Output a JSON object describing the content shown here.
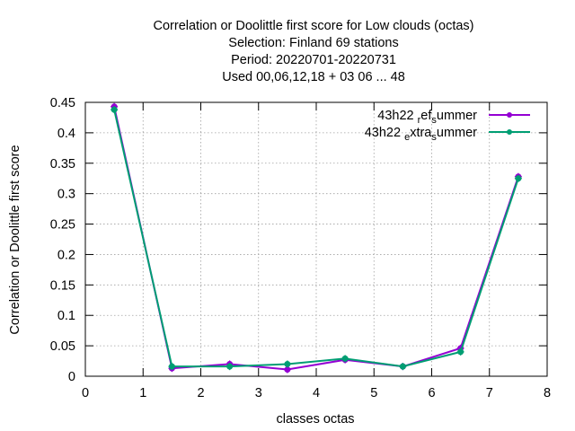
{
  "chart_data": {
    "type": "line",
    "title_lines": [
      "Correlation or Doolittle first score  for Low clouds (octas)",
      "Selection: Finland     69 stations",
      "Period: 20220701-20220731",
      "Used  00,06,12,18  + 03 06 ... 48"
    ],
    "xlabel": "classes octas",
    "ylabel": "Correlation or Doolittle first score",
    "xlim": [
      0,
      8
    ],
    "ylim": [
      0,
      0.45
    ],
    "xticks": [
      "0",
      "1",
      "2",
      "3",
      "4",
      "5",
      "6",
      "7",
      "8"
    ],
    "yticks": [
      "0",
      "0.05",
      "0.1",
      "0.15",
      "0.2",
      "0.25",
      "0.3",
      "0.35",
      "0.4",
      "0.45"
    ],
    "grid": true,
    "legend_position": "top-right",
    "series": [
      {
        "name": "43h22 _ref_summer",
        "legend_parts": [
          "43h22 ",
          "r",
          "ef",
          "s",
          "ummer"
        ],
        "color": "#9400d3",
        "x": [
          0.5,
          1.5,
          2.5,
          3.5,
          4.5,
          5.5,
          6.5,
          7.5
        ],
        "y": [
          0.443,
          0.013,
          0.02,
          0.011,
          0.027,
          0.016,
          0.046,
          0.328
        ]
      },
      {
        "name": "43h22 _extra_summer",
        "legend_parts": [
          "43h22 ",
          "e",
          "xtra",
          "s",
          "ummer"
        ],
        "color": "#009e73",
        "x": [
          0.5,
          1.5,
          2.5,
          3.5,
          4.5,
          5.5,
          6.5,
          7.5
        ],
        "y": [
          0.438,
          0.016,
          0.016,
          0.02,
          0.029,
          0.016,
          0.04,
          0.325
        ]
      }
    ]
  }
}
